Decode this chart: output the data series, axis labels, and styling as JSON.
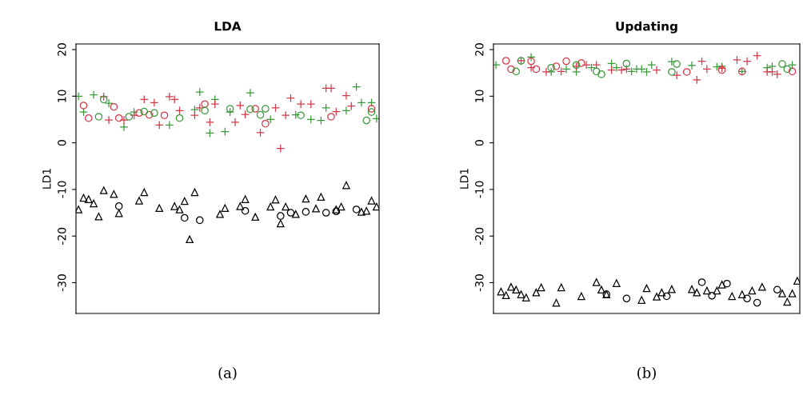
{
  "chart_data": [
    {
      "type": "scatter",
      "title": "LDA",
      "ylabel": "LD1",
      "annotations": [
        "(a)"
      ],
      "ylim": [
        -36.6,
        21.2
      ],
      "yticks": [
        20,
        10,
        0,
        -10,
        -20,
        -30
      ],
      "grid": false,
      "legend": false,
      "categories": [
        null,
        null,
        null,
        null,
        null,
        null,
        null,
        null,
        null,
        null,
        null,
        null,
        null,
        null,
        null,
        null,
        null,
        null,
        null,
        null,
        null,
        null,
        null,
        null,
        null,
        null,
        null,
        null,
        null,
        null,
        null,
        null,
        null,
        null,
        null,
        null,
        null,
        null,
        null,
        null,
        null,
        null,
        null,
        null,
        null,
        null,
        null,
        null,
        null,
        null,
        null,
        null,
        null,
        null,
        null,
        null,
        null,
        null,
        null,
        null
      ],
      "series": [
        {
          "type": "scatter",
          "marker": "cross",
          "color": "#3a9a3a",
          "values": [
            10.0,
            6.6,
            null,
            10.3,
            null,
            null,
            8.5,
            null,
            null,
            3.4,
            null,
            6.6,
            null,
            null,
            null,
            null,
            null,
            null,
            3.8,
            null,
            null,
            null,
            null,
            7.1,
            10.9,
            null,
            2.1,
            9.3,
            null,
            2.4,
            6.6,
            null,
            null,
            null,
            10.7,
            null,
            null,
            null,
            5.0,
            null,
            null,
            null,
            null,
            6.0,
            null,
            null,
            5.0,
            null,
            4.8,
            7.5,
            null,
            null,
            null,
            6.9,
            null,
            12.0,
            8.6,
            null,
            8.6,
            5.2
          ]
        },
        {
          "type": "scatter",
          "marker": "cross",
          "color": "#d33a4a",
          "values": [
            null,
            null,
            null,
            null,
            null,
            9.9,
            4.9,
            null,
            null,
            4.9,
            null,
            5.9,
            null,
            9.3,
            null,
            8.6,
            3.8,
            null,
            9.9,
            9.3,
            6.9,
            null,
            null,
            5.9,
            7.5,
            null,
            4.4,
            8.3,
            null,
            null,
            null,
            4.4,
            8.0,
            6.1,
            null,
            null,
            2.2,
            null,
            null,
            7.5,
            -1.2,
            5.9,
            9.6,
            null,
            8.3,
            null,
            8.3,
            null,
            null,
            11.7,
            11.7,
            6.7,
            null,
            10.1,
            7.9,
            null,
            null,
            null,
            null,
            null
          ]
        },
        {
          "type": "scatter",
          "marker": "circle",
          "color": "#d33a4a",
          "values": [
            null,
            8.0,
            5.3,
            null,
            null,
            null,
            null,
            7.7,
            5.3,
            null,
            null,
            null,
            6.4,
            null,
            6.0,
            null,
            null,
            5.9,
            null,
            null,
            null,
            null,
            null,
            null,
            null,
            8.3,
            null,
            null,
            null,
            null,
            null,
            null,
            null,
            null,
            null,
            7.3,
            null,
            4.1,
            null,
            null,
            null,
            null,
            null,
            null,
            null,
            null,
            null,
            null,
            null,
            null,
            5.6,
            null,
            null,
            null,
            null,
            null,
            null,
            null,
            7.3,
            null
          ]
        },
        {
          "type": "scatter",
          "marker": "circle",
          "color": "#3a9a3a",
          "values": [
            null,
            null,
            null,
            null,
            5.6,
            9.3,
            null,
            null,
            null,
            null,
            5.6,
            null,
            null,
            6.7,
            null,
            6.4,
            null,
            null,
            null,
            null,
            5.3,
            null,
            null,
            null,
            null,
            6.9,
            null,
            null,
            null,
            null,
            7.3,
            null,
            null,
            null,
            7.2,
            null,
            6.0,
            7.3,
            null,
            null,
            null,
            null,
            null,
            null,
            5.9,
            null,
            null,
            null,
            null,
            null,
            null,
            null,
            null,
            null,
            null,
            null,
            null,
            4.8,
            6.6,
            null
          ]
        },
        {
          "type": "scatter",
          "marker": "triangle",
          "color": "#000000",
          "values": [
            -14.3,
            -11.8,
            -12.1,
            -13.0,
            -15.8,
            -10.2,
            null,
            -11.0,
            -15.1,
            null,
            null,
            null,
            -12.4,
            -10.6,
            null,
            null,
            -14.0,
            null,
            null,
            -13.6,
            -14.3,
            -12.5,
            -20.7,
            -10.6,
            null,
            null,
            null,
            null,
            -15.3,
            -14.0,
            null,
            null,
            -13.6,
            -12.1,
            null,
            -15.9,
            null,
            null,
            -13.7,
            -12.2,
            -17.3,
            -13.7,
            null,
            -15.3,
            null,
            -12.0,
            null,
            -14.1,
            -11.6,
            null,
            null,
            -14.3,
            -13.7,
            -9.1,
            null,
            null,
            -14.8,
            -14.6,
            -12.4,
            -13.7
          ]
        },
        {
          "type": "scatter",
          "marker": "circle",
          "color": "#000000",
          "values": [
            null,
            null,
            null,
            null,
            null,
            null,
            null,
            null,
            -13.6,
            null,
            null,
            null,
            null,
            null,
            null,
            null,
            null,
            null,
            null,
            null,
            null,
            -16.1,
            null,
            null,
            -16.6,
            null,
            null,
            null,
            null,
            null,
            null,
            null,
            null,
            -14.6,
            null,
            null,
            null,
            null,
            null,
            null,
            -15.7,
            null,
            -15.0,
            null,
            null,
            -14.8,
            null,
            null,
            null,
            -15.0,
            null,
            -14.7,
            null,
            null,
            null,
            -14.3,
            null,
            null,
            null,
            null
          ]
        }
      ]
    },
    {
      "type": "scatter",
      "title": "Updating",
      "ylabel": "LD1",
      "annotations": [
        "(b)"
      ],
      "ylim": [
        -36.6,
        21.2
      ],
      "yticks": [
        20,
        10,
        0,
        -10,
        -20,
        -30
      ],
      "grid": false,
      "legend": false,
      "categories": [
        null,
        null,
        null,
        null,
        null,
        null,
        null,
        null,
        null,
        null,
        null,
        null,
        null,
        null,
        null,
        null,
        null,
        null,
        null,
        null,
        null,
        null,
        null,
        null,
        null,
        null,
        null,
        null,
        null,
        null,
        null,
        null,
        null,
        null,
        null,
        null,
        null,
        null,
        null,
        null,
        null,
        null,
        null,
        null,
        null,
        null,
        null,
        null,
        null,
        null,
        null,
        null,
        null,
        null,
        null,
        null,
        null,
        null,
        null,
        null,
        null
      ],
      "series": [
        {
          "type": "scatter",
          "marker": "cross",
          "color": "#3a9a3a",
          "values": [
            16.7,
            null,
            null,
            null,
            null,
            null,
            null,
            18.4,
            null,
            null,
            null,
            15.2,
            null,
            null,
            15.8,
            null,
            15.2,
            null,
            null,
            16.1,
            null,
            null,
            null,
            17.0,
            16.1,
            null,
            null,
            15.3,
            15.8,
            15.8,
            15.2,
            16.7,
            null,
            null,
            null,
            17.4,
            null,
            null,
            null,
            16.6,
            null,
            null,
            null,
            null,
            16.3,
            16.4,
            null,
            null,
            null,
            15.3,
            null,
            null,
            null,
            null,
            16.1,
            16.4,
            null,
            null,
            null,
            16.7,
            null
          ]
        },
        {
          "type": "scatter",
          "marker": "cross",
          "color": "#d33a4a",
          "values": [
            null,
            null,
            null,
            null,
            null,
            17.6,
            null,
            16.1,
            null,
            null,
            15.2,
            null,
            null,
            15.3,
            null,
            null,
            16.4,
            null,
            16.7,
            null,
            16.7,
            null,
            null,
            15.6,
            null,
            15.6,
            15.8,
            null,
            null,
            null,
            null,
            null,
            15.6,
            null,
            null,
            null,
            14.5,
            null,
            null,
            null,
            13.5,
            17.5,
            15.8,
            null,
            null,
            16.0,
            null,
            null,
            17.8,
            null,
            17.5,
            null,
            18.7,
            null,
            15.2,
            15.2,
            14.7,
            null,
            null,
            null,
            null
          ]
        },
        {
          "type": "scatter",
          "marker": "circle",
          "color": "#d33a4a",
          "values": [
            null,
            null,
            17.6,
            15.8,
            null,
            null,
            null,
            17.5,
            15.8,
            null,
            null,
            null,
            16.4,
            null,
            17.5,
            null,
            null,
            17.1,
            null,
            null,
            null,
            null,
            null,
            null,
            null,
            null,
            null,
            null,
            null,
            null,
            null,
            null,
            null,
            null,
            null,
            null,
            null,
            null,
            15.2,
            null,
            null,
            null,
            null,
            null,
            null,
            15.6,
            null,
            null,
            null,
            15.3,
            null,
            null,
            null,
            null,
            null,
            null,
            null,
            null,
            null,
            15.3,
            null
          ]
        },
        {
          "type": "scatter",
          "marker": "circle",
          "color": "#3a9a3a",
          "values": [
            null,
            null,
            null,
            null,
            15.3,
            17.6,
            null,
            null,
            null,
            null,
            null,
            16.1,
            null,
            null,
            null,
            null,
            16.7,
            null,
            null,
            null,
            15.3,
            14.7,
            null,
            null,
            null,
            null,
            17.0,
            null,
            null,
            null,
            null,
            null,
            null,
            null,
            null,
            15.2,
            16.9,
            null,
            null,
            null,
            null,
            null,
            null,
            null,
            null,
            null,
            null,
            null,
            null,
            null,
            null,
            null,
            null,
            null,
            null,
            null,
            null,
            16.9,
            15.8,
            null,
            null
          ]
        },
        {
          "type": "scatter",
          "marker": "triangle",
          "color": "#000000",
          "values": [
            null,
            -31.9,
            -32.7,
            -30.9,
            -31.5,
            -32.5,
            -33.2,
            null,
            -32.1,
            -31.0,
            null,
            null,
            -34.3,
            -31.0,
            null,
            null,
            null,
            -32.9,
            null,
            null,
            -29.9,
            -31.5,
            -32.5,
            null,
            -30.1,
            null,
            null,
            null,
            null,
            -33.7,
            -31.2,
            null,
            -33.0,
            -32.1,
            null,
            -31.4,
            null,
            null,
            null,
            -31.4,
            -32.1,
            null,
            -31.7,
            null,
            -31.7,
            -30.4,
            null,
            -32.9,
            null,
            -32.5,
            null,
            -31.7,
            null,
            -30.9,
            null,
            null,
            null,
            -32.3,
            -34.1,
            -32.3,
            -29.6
          ]
        },
        {
          "type": "scatter",
          "marker": "circle",
          "color": "#000000",
          "values": [
            null,
            null,
            null,
            null,
            null,
            null,
            null,
            null,
            null,
            null,
            null,
            null,
            null,
            null,
            null,
            null,
            null,
            null,
            null,
            null,
            null,
            null,
            -32.5,
            null,
            null,
            null,
            -33.4,
            null,
            null,
            null,
            null,
            null,
            null,
            null,
            -32.9,
            null,
            null,
            null,
            null,
            null,
            null,
            -29.9,
            null,
            -32.8,
            null,
            null,
            -30.2,
            null,
            null,
            null,
            -33.4,
            null,
            -34.3,
            null,
            null,
            null,
            -31.5,
            null,
            null,
            null,
            null
          ]
        }
      ]
    }
  ]
}
